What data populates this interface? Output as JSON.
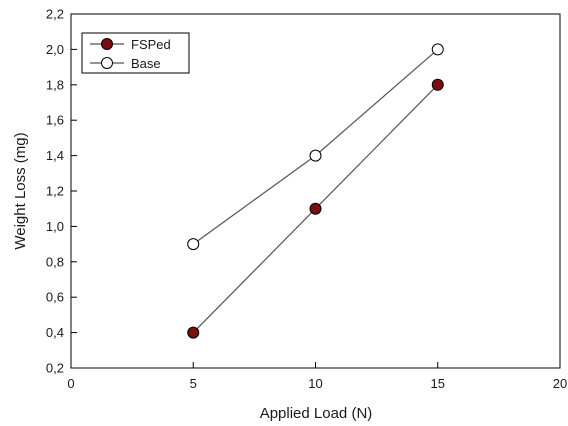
{
  "chart_data": {
    "type": "line",
    "xlabel": "Applied Load (N)",
    "ylabel": "Weight Loss (mg)",
    "xlim": [
      0,
      20
    ],
    "ylim": [
      0.2,
      2.2
    ],
    "x_ticks": [
      0,
      5,
      10,
      15,
      20
    ],
    "x_tick_labels": [
      "0",
      "5",
      "10",
      "15",
      "20"
    ],
    "y_ticks": [
      0.2,
      0.4,
      0.6,
      0.8,
      1.0,
      1.2,
      1.4,
      1.6,
      1.8,
      2.0,
      2.2
    ],
    "y_tick_labels": [
      "0,2",
      "0,4",
      "0,6",
      "0,8",
      "1,0",
      "1,2",
      "1,4",
      "1,6",
      "1,8",
      "2,0",
      "2,2"
    ],
    "grid": false,
    "legend_position": "top-left",
    "x": [
      5,
      10,
      15
    ],
    "series": [
      {
        "name": "FSPed",
        "values": [
          0.4,
          1.1,
          1.8
        ],
        "marker": "filled-circle",
        "color": "#7b0f0f"
      },
      {
        "name": "Base",
        "values": [
          0.9,
          1.4,
          2.0
        ],
        "marker": "open-circle",
        "color": "#ffffff"
      }
    ],
    "line_color": "#555555"
  }
}
